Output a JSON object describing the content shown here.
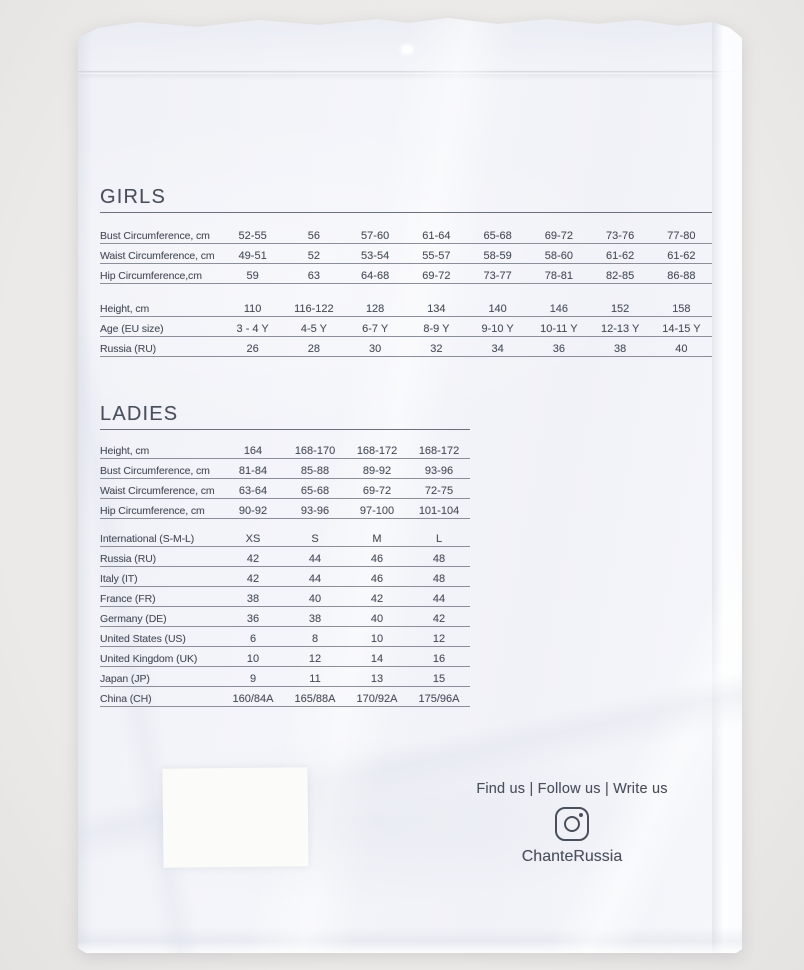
{
  "colors": {
    "text": "#4a505b",
    "rule": "#8a8f99",
    "rule_dark": "#6a707c",
    "bag": "#f3f4f9",
    "background": "#eceae8",
    "card": "#fbfbf9",
    "icon": "#4a505b"
  },
  "girls_table": {
    "title": "GIRLS",
    "rows": [
      {
        "label": "Bust Circumference, cm",
        "values": [
          "52-55",
          "56",
          "57-60",
          "61-64",
          "65-68",
          "69-72",
          "73-76",
          "77-80"
        ]
      },
      {
        "label": "Waist Circumference, cm",
        "values": [
          "49-51",
          "52",
          "53-54",
          "55-57",
          "58-59",
          "58-60",
          "61-62",
          "61-62"
        ]
      },
      {
        "label": "Hip Circumference,cm",
        "values": [
          "59",
          "63",
          "64-68",
          "69-72",
          "73-77",
          "78-81",
          "82-85",
          "86-88"
        ],
        "gap_after": true
      },
      {
        "label": "Height, cm",
        "values": [
          "110",
          "116-122",
          "128",
          "134",
          "140",
          "146",
          "152",
          "158"
        ]
      },
      {
        "label": "Age (EU size)",
        "values": [
          "3 - 4 Y",
          "4-5 Y",
          "6-7 Y",
          "8-9 Y",
          "9-10 Y",
          "10-11 Y",
          "12-13 Y",
          "14-15 Y"
        ]
      },
      {
        "label": "Russia (RU)",
        "values": [
          "26",
          "28",
          "30",
          "32",
          "34",
          "36",
          "38",
          "40"
        ]
      }
    ]
  },
  "ladies_table": {
    "title": "LADIES",
    "rows": [
      {
        "label": "Height, cm",
        "values": [
          "164",
          "168-170",
          "168-172",
          "168-172"
        ]
      },
      {
        "label": "Bust Circumference, cm",
        "values": [
          "81-84",
          "85-88",
          "89-92",
          "93-96"
        ]
      },
      {
        "label": "Waist Circumference, cm",
        "values": [
          "63-64",
          "65-68",
          "69-72",
          "72-75"
        ]
      },
      {
        "label": "Hip Circumference, cm",
        "values": [
          "90-92",
          "93-96",
          "97-100",
          "101-104"
        ],
        "gap_after": true
      },
      {
        "label": "International (S-M-L)",
        "values": [
          "XS",
          "S",
          "M",
          "L"
        ]
      },
      {
        "label": "Russia (RU)",
        "values": [
          "42",
          "44",
          "46",
          "48"
        ]
      },
      {
        "label": "Italy (IT)",
        "values": [
          "42",
          "44",
          "46",
          "48"
        ]
      },
      {
        "label": "France (FR)",
        "values": [
          "38",
          "40",
          "42",
          "44"
        ]
      },
      {
        "label": "Germany (DE)",
        "values": [
          "36",
          "38",
          "40",
          "42"
        ]
      },
      {
        "label": "United States (US)",
        "values": [
          "6",
          "8",
          "10",
          "12"
        ]
      },
      {
        "label": "United Kingdom (UK)",
        "values": [
          "10",
          "12",
          "14",
          "16"
        ]
      },
      {
        "label": "Japan (JP)",
        "values": [
          "9",
          "11",
          "13",
          "15"
        ]
      },
      {
        "label": "China (CH)",
        "values": [
          "160/84A",
          "165/88A",
          "170/92A",
          "175/96A"
        ]
      }
    ]
  },
  "footer": {
    "social_text": "Find us | Follow us | Write us",
    "instagram_icon": "instagram-icon",
    "instagram_handle": "ChanteRussia"
  }
}
